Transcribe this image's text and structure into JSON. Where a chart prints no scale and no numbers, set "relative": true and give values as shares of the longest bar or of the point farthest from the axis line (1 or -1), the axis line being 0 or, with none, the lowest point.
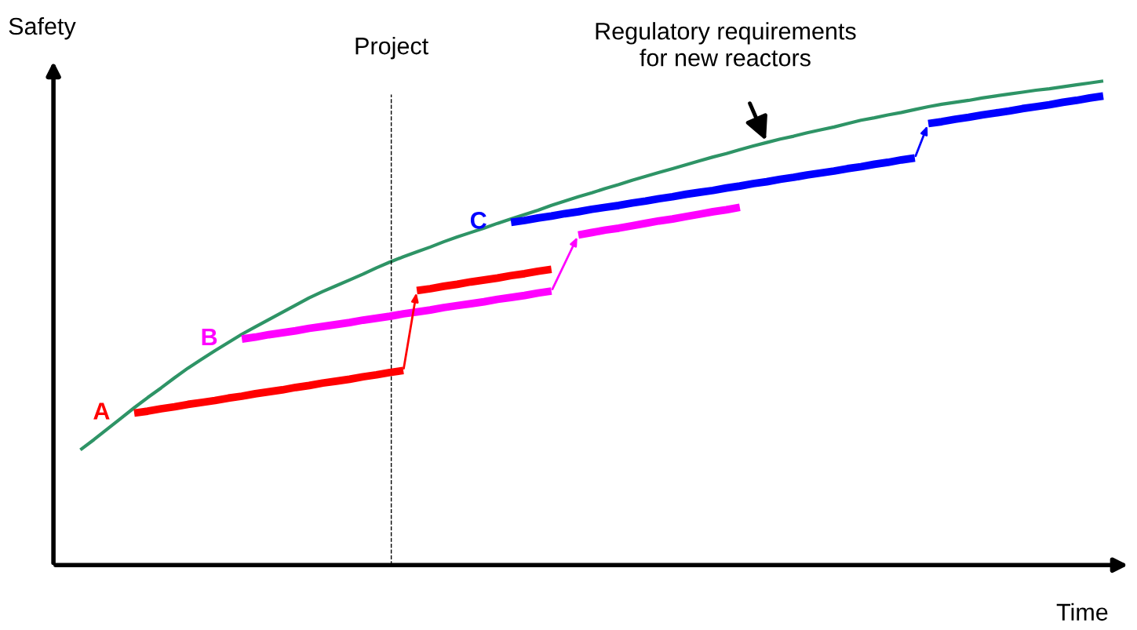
{
  "chart_data": {
    "type": "line",
    "relative": true,
    "xlabel": "Time",
    "ylabel": "Safety",
    "marker": "none",
    "line_style": "solid",
    "categories": [
      null,
      null,
      null,
      null,
      null,
      null,
      null,
      null,
      null,
      null,
      null,
      null,
      null,
      null,
      null,
      null,
      null,
      null,
      null,
      null,
      null,
      null,
      null,
      null,
      null,
      null,
      null,
      null,
      null,
      null,
      null,
      null,
      null,
      null,
      null,
      null,
      null,
      null,
      null,
      null,
      null,
      null,
      null,
      null,
      null,
      null,
      null,
      null,
      null,
      null,
      null,
      null,
      null,
      null,
      null,
      null,
      null,
      null,
      null,
      null,
      null,
      null,
      null,
      null,
      null,
      null,
      null,
      null,
      null,
      null,
      null,
      null,
      null,
      null,
      null,
      null,
      null
    ],
    "series": [
      {
        "color": "#2e9466",
        "values": [
          0.238,
          0.259,
          0.281,
          0.303,
          0.325,
          0.346,
          0.366,
          0.387,
          0.407,
          0.425,
          0.443,
          0.46,
          0.477,
          0.492,
          0.507,
          0.522,
          0.537,
          0.552,
          0.565,
          0.577,
          0.589,
          0.601,
          0.614,
          0.626,
          0.637,
          0.647,
          0.657,
          0.668,
          0.678,
          0.687,
          0.696,
          0.706,
          0.715,
          0.724,
          0.733,
          0.743,
          0.752,
          0.761,
          0.769,
          0.778,
          0.786,
          0.795,
          0.803,
          0.811,
          0.819,
          0.827,
          0.835,
          0.843,
          0.85,
          0.858,
          0.866,
          0.873,
          0.88,
          0.886,
          0.893,
          0.899,
          0.905,
          0.912,
          0.919,
          0.924,
          0.93,
          0.935,
          0.941,
          0.947,
          0.952,
          0.956,
          0.96,
          0.965,
          0.969,
          0.973,
          0.977,
          0.981,
          0.984,
          0.988,
          0.992,
          0.996,
          1.0
        ]
      },
      {
        "color": "#ff0000",
        "values": [
          null,
          null,
          null,
          null,
          0.314,
          0.318,
          0.323,
          0.327,
          0.332,
          0.336,
          0.34,
          0.345,
          0.349,
          0.354,
          0.358,
          0.362,
          0.367,
          0.371,
          0.376,
          0.38,
          0.384,
          0.389,
          0.393,
          0.398,
          0.402,
          null,
          null,
          null,
          null,
          null,
          null,
          null,
          null,
          null,
          null,
          null,
          null,
          null,
          null,
          null,
          null,
          null,
          null,
          null,
          null,
          null,
          null,
          null,
          null,
          null,
          null,
          null,
          null,
          null,
          null,
          null,
          null,
          null,
          null,
          null,
          null,
          null,
          null,
          null,
          null,
          null,
          null,
          null,
          null,
          null,
          null,
          null,
          null,
          null,
          null,
          null,
          null
        ]
      },
      {
        "color": "#ff0000",
        "values": [
          null,
          null,
          null,
          null,
          null,
          null,
          null,
          null,
          null,
          null,
          null,
          null,
          null,
          null,
          null,
          null,
          null,
          null,
          null,
          null,
          null,
          null,
          null,
          null,
          null,
          0.567,
          0.571,
          0.576,
          0.58,
          0.585,
          0.589,
          0.593,
          0.598,
          0.602,
          0.607,
          0.611,
          null,
          null,
          null,
          null,
          null,
          null,
          null,
          null,
          null,
          null,
          null,
          null,
          null,
          null,
          null,
          null,
          null,
          null,
          null,
          null,
          null,
          null,
          null,
          null,
          null,
          null,
          null,
          null,
          null,
          null,
          null,
          null,
          null,
          null,
          null,
          null,
          null,
          null,
          null,
          null,
          null
        ]
      },
      {
        "color": "#ff00ff",
        "values": [
          null,
          null,
          null,
          null,
          null,
          null,
          null,
          null,
          null,
          null,
          null,
          null,
          0.467,
          0.471,
          0.476,
          0.48,
          0.484,
          0.489,
          0.493,
          0.497,
          0.501,
          0.506,
          0.51,
          0.514,
          0.519,
          0.523,
          0.527,
          0.532,
          0.536,
          0.54,
          0.544,
          0.549,
          0.553,
          0.557,
          0.562,
          0.566,
          null,
          null,
          null,
          null,
          null,
          null,
          null,
          null,
          null,
          null,
          null,
          null,
          null,
          null,
          null,
          null,
          null,
          null,
          null,
          null,
          null,
          null,
          null,
          null,
          null,
          null,
          null,
          null,
          null,
          null,
          null,
          null,
          null,
          null,
          null,
          null,
          null,
          null,
          null,
          null,
          null
        ]
      },
      {
        "color": "#ff00ff",
        "values": [
          null,
          null,
          null,
          null,
          null,
          null,
          null,
          null,
          null,
          null,
          null,
          null,
          null,
          null,
          null,
          null,
          null,
          null,
          null,
          null,
          null,
          null,
          null,
          null,
          null,
          null,
          null,
          null,
          null,
          null,
          null,
          null,
          null,
          null,
          null,
          null,
          null,
          0.682,
          0.687,
          0.692,
          0.696,
          0.701,
          0.706,
          0.711,
          0.715,
          0.72,
          0.725,
          0.73,
          0.734,
          0.739,
          null,
          null,
          null,
          null,
          null,
          null,
          null,
          null,
          null,
          null,
          null,
          null,
          null,
          null,
          null,
          null,
          null,
          null,
          null,
          null,
          null,
          null,
          null,
          null,
          null,
          null,
          null
        ]
      },
      {
        "color": "#0000ff",
        "values": [
          null,
          null,
          null,
          null,
          null,
          null,
          null,
          null,
          null,
          null,
          null,
          null,
          null,
          null,
          null,
          null,
          null,
          null,
          null,
          null,
          null,
          null,
          null,
          null,
          null,
          null,
          null,
          null,
          null,
          null,
          null,
          null,
          0.708,
          0.712,
          0.717,
          0.721,
          0.726,
          0.73,
          0.735,
          0.739,
          0.743,
          0.748,
          0.752,
          0.757,
          0.761,
          0.766,
          0.77,
          0.774,
          0.779,
          0.783,
          0.788,
          0.792,
          0.797,
          0.801,
          0.806,
          0.81,
          0.814,
          0.819,
          0.823,
          0.828,
          0.832,
          0.837,
          0.841,
          null,
          null,
          null,
          null,
          null,
          null,
          null,
          null,
          null,
          null,
          null,
          null,
          null,
          null
        ]
      },
      {
        "color": "#0000ff",
        "values": [
          null,
          null,
          null,
          null,
          null,
          null,
          null,
          null,
          null,
          null,
          null,
          null,
          null,
          null,
          null,
          null,
          null,
          null,
          null,
          null,
          null,
          null,
          null,
          null,
          null,
          null,
          null,
          null,
          null,
          null,
          null,
          null,
          null,
          null,
          null,
          null,
          null,
          null,
          null,
          null,
          null,
          null,
          null,
          null,
          null,
          null,
          null,
          null,
          null,
          null,
          null,
          null,
          null,
          null,
          null,
          null,
          null,
          null,
          null,
          null,
          null,
          null,
          null,
          0.912,
          0.916,
          0.921,
          0.925,
          0.93,
          0.934,
          0.938,
          0.943,
          0.947,
          0.951,
          0.956,
          0.96,
          0.965,
          0.969
        ]
      }
    ],
    "annotations": [
      "A",
      "B",
      "C",
      "Regulatory requirements\nfor new reactors",
      "Project"
    ]
  }
}
